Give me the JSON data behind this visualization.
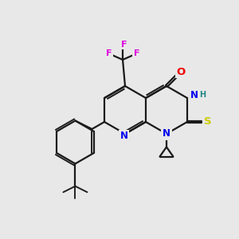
{
  "background_color": "#e8e8e8",
  "bond_color": "#1a1a1a",
  "atom_colors": {
    "N": "#0000ee",
    "O": "#ee0000",
    "S": "#cccc00",
    "F": "#dd00dd",
    "H": "#228888",
    "C": "#1a1a1a"
  },
  "figsize": [
    3.0,
    3.0
  ],
  "dpi": 100,
  "lw": 1.6,
  "fs": 8.5
}
